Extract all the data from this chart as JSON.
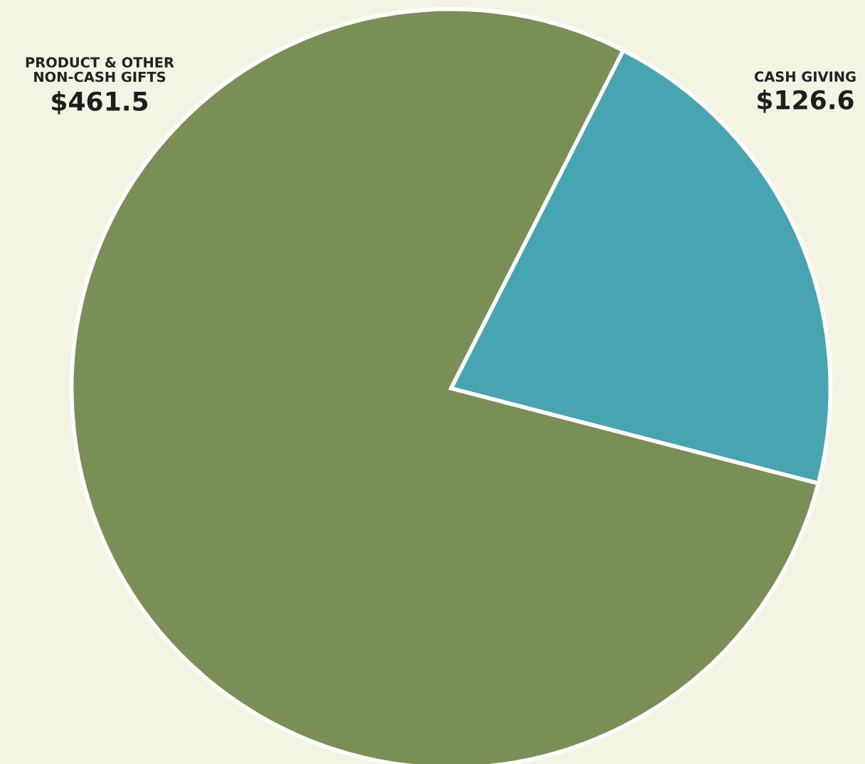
{
  "chart_data": {
    "type": "pie",
    "categories": [
      "CASH GIVING",
      "PRODUCT & OTHER\nNON-CASH GIFTS"
    ],
    "values": [
      126.6,
      461.5
    ],
    "colors": [
      "#46a5b0",
      "#7a8f55"
    ],
    "value_labels": [
      "$126.6",
      "$461.5"
    ]
  }
}
